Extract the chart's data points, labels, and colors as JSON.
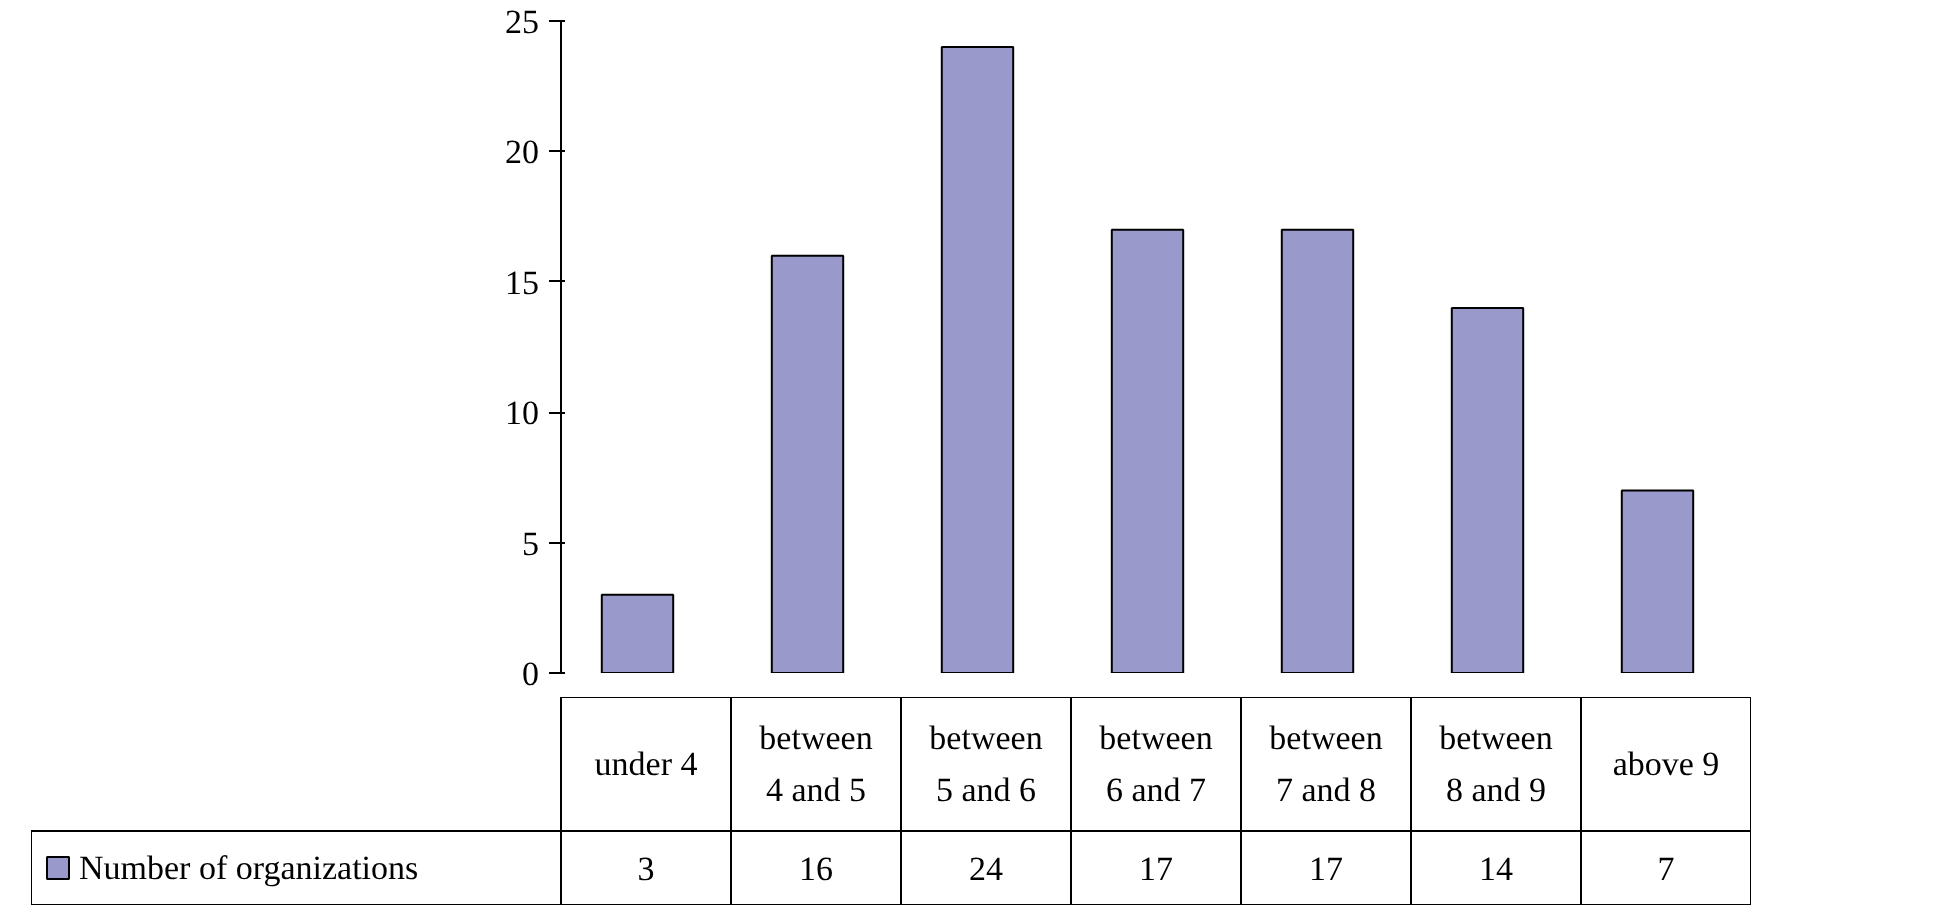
{
  "chart_data": {
    "type": "bar",
    "categories": [
      "under 4",
      "between 4 and 5",
      "between 5 and 6",
      "between 6 and 7",
      "between 7 and 8",
      "between 8 and 9",
      "above 9"
    ],
    "series": [
      {
        "name": "Number of organizations",
        "color": "#9999cc",
        "values": [
          3,
          16,
          24,
          17,
          17,
          14,
          7
        ]
      }
    ],
    "ylim": [
      0,
      25
    ],
    "yticks": [
      0,
      5,
      10,
      15,
      20,
      25
    ],
    "grid": false,
    "legend": "bottom",
    "data_labels": true
  }
}
